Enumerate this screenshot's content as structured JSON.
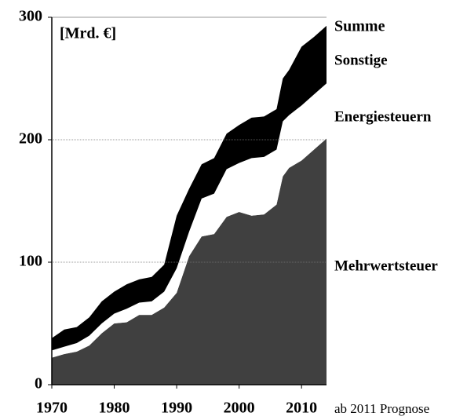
{
  "chart_data": {
    "type": "stacked_area",
    "unit_label": "[Mrd. €]",
    "total_label": "Summe",
    "note": "ab 2011 Prognose",
    "x": [
      1970,
      1972,
      1974,
      1976,
      1978,
      1980,
      1982,
      1984,
      1986,
      1988,
      1990,
      1992,
      1994,
      1996,
      1998,
      2000,
      2002,
      2004,
      2006,
      2007,
      2008,
      2010,
      2012,
      2014
    ],
    "series": [
      {
        "name": "Mehrwertsteuer",
        "color": "#404040",
        "values": [
          22,
          25,
          27,
          32,
          42,
          50,
          51,
          57,
          57,
          63,
          75,
          105,
          121,
          123,
          137,
          141,
          138,
          139,
          147,
          170,
          177,
          183,
          192,
          201
        ]
      },
      {
        "name": "Energiesteuern",
        "color": "#ffffff",
        "values": [
          6,
          6,
          7,
          8,
          8,
          8,
          11,
          10,
          11,
          13,
          20,
          20,
          31,
          33,
          39,
          40,
          47,
          47,
          45,
          45,
          43,
          45,
          45,
          45
        ]
      },
      {
        "name": "Sonstige",
        "color": "#000000",
        "values": [
          10,
          14,
          13,
          15,
          18,
          18,
          20,
          19,
          20,
          22,
          43,
          35,
          28,
          29,
          29,
          31,
          33,
          33,
          33,
          35,
          37,
          48,
          47,
          47
        ]
      }
    ],
    "xlim": [
      1970,
      2014
    ],
    "xticks": [
      1970,
      1980,
      1990,
      2000,
      2010
    ],
    "ylim": [
      0,
      300
    ],
    "yticks": [
      0,
      100,
      200,
      300
    ],
    "grid": true
  }
}
